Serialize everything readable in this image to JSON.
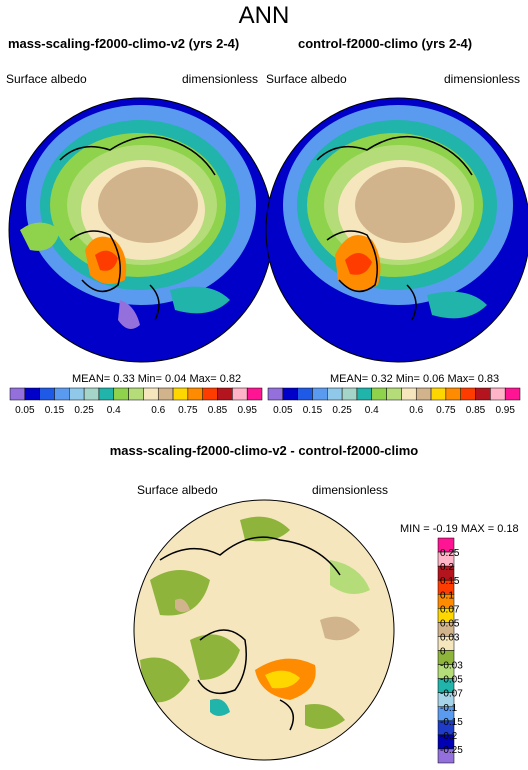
{
  "page_title": "ANN",
  "panels": [
    {
      "title": "mass-scaling-f2000-climo-v2 (yrs 2-4)",
      "variable": "Surface albedo",
      "units": "dimensionless",
      "mean_label": "MEAN=",
      "mean": "0.33",
      "min_label": "Min=",
      "min": "0.04",
      "max_label": "Max=",
      "max": "0.82"
    },
    {
      "title": "control-f2000-climo (yrs 2-4)",
      "variable": "Surface albedo",
      "units": "dimensionless",
      "mean_label": "MEAN=",
      "mean": "0.32",
      "min_label": "Min=",
      "min": "0.06",
      "max_label": "Max=",
      "max": "0.83"
    }
  ],
  "colorbar": {
    "labels": [
      "0.05",
      "0.15",
      "0.25",
      "0.4",
      "0.6",
      "0.75",
      "0.85",
      "0.95"
    ],
    "colors": [
      "#9370db",
      "#0000c8",
      "#1e5ae6",
      "#5a9bf0",
      "#8fc8e8",
      "#a5d4c8",
      "#20b4aa",
      "#8fd24b",
      "#b4dc78",
      "#f5e6be",
      "#d2b48c",
      "#ffd700",
      "#ff8c00",
      "#ff3c00",
      "#b4141e",
      "#ffb4c8",
      "#ff1493"
    ]
  },
  "diff": {
    "title": "mass-scaling-f2000-climo-v2 - control-f2000-climo",
    "variable": "Surface albedo",
    "units": "dimensionless",
    "min_label": "MIN =",
    "min": "-0.19",
    "max_label": "MAX =",
    "max": "0.18",
    "colorbar_labels": [
      "0.25",
      "0.2",
      "0.15",
      "0.1",
      "0.07",
      "0.05",
      "0.03",
      "0",
      "-0.03",
      "-0.05",
      "-0.07",
      "-0.1",
      "-0.15",
      "-0.2",
      "-0.25"
    ],
    "colorbar_colors": [
      "#ff1493",
      "#ffb4c8",
      "#b4141e",
      "#ff3c00",
      "#ff8c00",
      "#ffd700",
      "#d2b48c",
      "#f5e6be",
      "#8fb43c",
      "#b4dc78",
      "#20b4aa",
      "#a5d4e8",
      "#5a9bf0",
      "#1e3cc8",
      "#0000b4",
      "#9370db"
    ]
  }
}
